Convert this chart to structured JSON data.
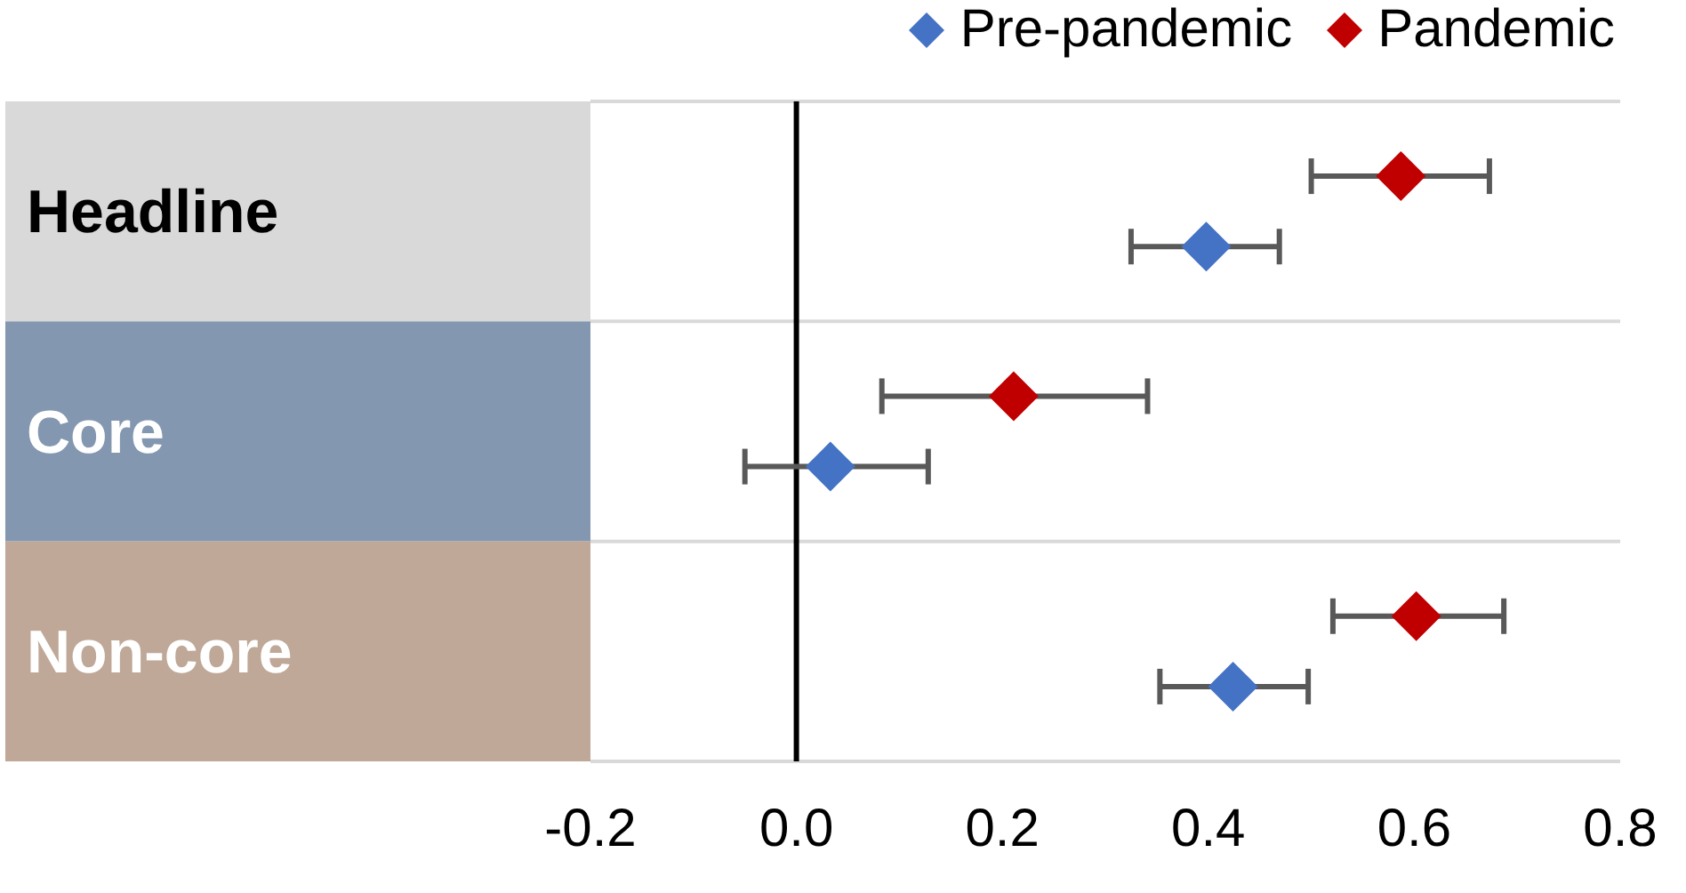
{
  "chart_data": {
    "type": "scatter",
    "categories": [
      "Headline",
      "Core",
      "Non-core"
    ],
    "series": [
      {
        "name": "Pre-pandemic",
        "color": "#4472c4",
        "values": [
          0.398,
          0.033,
          0.424
        ],
        "errors": [
          [
            0.325,
            0.469
          ],
          [
            -0.05,
            0.128
          ],
          [
            0.353,
            0.497
          ]
        ]
      },
      {
        "name": "Pandemic",
        "color": "#c00000",
        "values": [
          0.587,
          0.211,
          0.602
        ],
        "errors": [
          [
            0.5,
            0.673
          ],
          [
            0.083,
            0.341
          ],
          [
            0.521,
            0.687
          ]
        ]
      }
    ],
    "orientation": "horizontal",
    "xlim": [
      -0.2,
      0.8
    ],
    "xticks": [
      {
        "value": -0.2,
        "label": "-0.2"
      },
      {
        "value": 0,
        "label": "0.0"
      },
      {
        "value": 0.2,
        "label": "0.2"
      },
      {
        "value": 0.4,
        "label": "0.4"
      },
      {
        "value": 0.6,
        "label": "0.6"
      },
      {
        "value": 0.8,
        "label": "0.8"
      }
    ],
    "ref_lines": [
      {
        "axis": "x",
        "value": 0,
        "color": "#000000"
      }
    ],
    "grid": "y",
    "legend": "top right",
    "marker": "diamond"
  }
}
